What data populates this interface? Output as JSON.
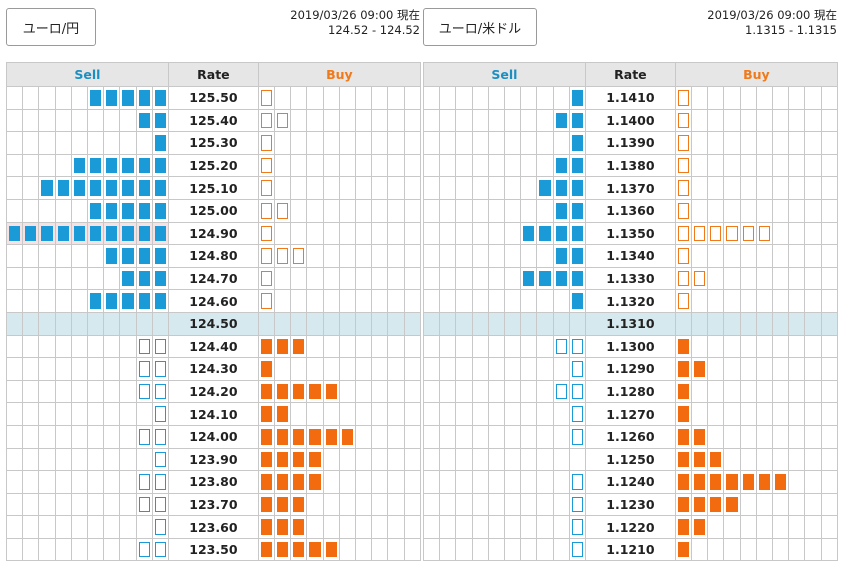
{
  "panels": [
    {
      "button_label": "ユーロ/円",
      "timestamp": "2019/03/26 09:00 現在",
      "quote": "124.52 - 124.52",
      "headers": {
        "sell": "Sell",
        "rate": "Rate",
        "buy": "Buy"
      },
      "highlight_row": 6,
      "rows": [
        {
          "rate": "125.50",
          "sell": 5,
          "sell_type": "filled",
          "buy": 1,
          "buy_type": "outline"
        },
        {
          "rate": "125.40",
          "sell": 2,
          "sell_type": "filled",
          "buy": 2,
          "buy_type": "outline"
        },
        {
          "rate": "125.30",
          "sell": 1,
          "sell_type": "filled",
          "buy": 1,
          "buy_type": "outline"
        },
        {
          "rate": "125.20",
          "sell": 6,
          "sell_type": "filled",
          "buy": 1,
          "buy_type": "outline"
        },
        {
          "rate": "125.10",
          "sell": 8,
          "sell_type": "filled",
          "buy": 1,
          "buy_type": "outline"
        },
        {
          "rate": "125.00",
          "sell": 5,
          "sell_type": "filled",
          "buy": 2,
          "buy_type": "outline"
        },
        {
          "rate": "124.90",
          "sell": 10,
          "sell_type": "filled",
          "buy": 1,
          "buy_type": "outline"
        },
        {
          "rate": "124.80",
          "sell": 4,
          "sell_type": "filled",
          "buy": 3,
          "buy_type": "outline"
        },
        {
          "rate": "124.70",
          "sell": 3,
          "sell_type": "filled",
          "buy": 1,
          "buy_type": "outline"
        },
        {
          "rate": "124.60",
          "sell": 5,
          "sell_type": "filled",
          "buy": 1,
          "buy_type": "outline"
        },
        {
          "rate": "124.50",
          "sell": 0,
          "sell_type": "none",
          "buy": 0,
          "buy_type": "none",
          "mid": true
        },
        {
          "rate": "124.40",
          "sell": 2,
          "sell_type": "outline",
          "buy": 3,
          "buy_type": "filled"
        },
        {
          "rate": "124.30",
          "sell": 2,
          "sell_type": "outline",
          "buy": 1,
          "buy_type": "filled"
        },
        {
          "rate": "124.20",
          "sell": 2,
          "sell_type": "outline",
          "buy": 5,
          "buy_type": "filled"
        },
        {
          "rate": "124.10",
          "sell": 1,
          "sell_type": "outline",
          "buy": 2,
          "buy_type": "filled"
        },
        {
          "rate": "124.00",
          "sell": 2,
          "sell_type": "outline",
          "buy": 6,
          "buy_type": "filled"
        },
        {
          "rate": "123.90",
          "sell": 1,
          "sell_type": "outline",
          "buy": 4,
          "buy_type": "filled"
        },
        {
          "rate": "123.80",
          "sell": 2,
          "sell_type": "outline",
          "buy": 4,
          "buy_type": "filled"
        },
        {
          "rate": "123.70",
          "sell": 2,
          "sell_type": "outline",
          "buy": 3,
          "buy_type": "filled"
        },
        {
          "rate": "123.60",
          "sell": 1,
          "sell_type": "outline",
          "buy": 3,
          "buy_type": "filled"
        },
        {
          "rate": "123.50",
          "sell": 2,
          "sell_type": "outline",
          "buy": 5,
          "buy_type": "filled"
        }
      ]
    },
    {
      "button_label": "ユーロ/米ドル",
      "timestamp": "2019/03/26 09:00 現在",
      "quote": "1.1315 - 1.1315",
      "headers": {
        "sell": "Sell",
        "rate": "Rate",
        "buy": "Buy"
      },
      "highlight_row": -1,
      "rows": [
        {
          "rate": "1.1410",
          "sell": 1,
          "sell_type": "filled",
          "buy": 1,
          "buy_type": "outline"
        },
        {
          "rate": "1.1400",
          "sell": 2,
          "sell_type": "filled",
          "buy": 1,
          "buy_type": "outline"
        },
        {
          "rate": "1.1390",
          "sell": 1,
          "sell_type": "filled",
          "buy": 1,
          "buy_type": "outline"
        },
        {
          "rate": "1.1380",
          "sell": 2,
          "sell_type": "filled",
          "buy": 1,
          "buy_type": "outline"
        },
        {
          "rate": "1.1370",
          "sell": 3,
          "sell_type": "filled",
          "buy": 1,
          "buy_type": "outline"
        },
        {
          "rate": "1.1360",
          "sell": 2,
          "sell_type": "filled",
          "buy": 1,
          "buy_type": "outline"
        },
        {
          "rate": "1.1350",
          "sell": 4,
          "sell_type": "filled",
          "buy": 6,
          "buy_type": "outline"
        },
        {
          "rate": "1.1340",
          "sell": 2,
          "sell_type": "filled",
          "buy": 1,
          "buy_type": "outline"
        },
        {
          "rate": "1.1330",
          "sell": 4,
          "sell_type": "filled",
          "buy": 2,
          "buy_type": "outline"
        },
        {
          "rate": "1.1320",
          "sell": 1,
          "sell_type": "filled",
          "buy": 1,
          "buy_type": "outline"
        },
        {
          "rate": "1.1310",
          "sell": 0,
          "sell_type": "none",
          "buy": 0,
          "buy_type": "none",
          "mid": true
        },
        {
          "rate": "1.1300",
          "sell": 2,
          "sell_type": "outline",
          "buy": 1,
          "buy_type": "filled"
        },
        {
          "rate": "1.1290",
          "sell": 1,
          "sell_type": "outline",
          "buy": 2,
          "buy_type": "filled"
        },
        {
          "rate": "1.1280",
          "sell": 2,
          "sell_type": "outline",
          "buy": 1,
          "buy_type": "filled"
        },
        {
          "rate": "1.1270",
          "sell": 1,
          "sell_type": "outline",
          "buy": 1,
          "buy_type": "filled"
        },
        {
          "rate": "1.1260",
          "sell": 1,
          "sell_type": "outline",
          "buy": 2,
          "buy_type": "filled"
        },
        {
          "rate": "1.1250",
          "sell": 0,
          "sell_type": "none",
          "buy": 3,
          "buy_type": "filled"
        },
        {
          "rate": "1.1240",
          "sell": 1,
          "sell_type": "outline",
          "buy": 7,
          "buy_type": "filled"
        },
        {
          "rate": "1.1230",
          "sell": 1,
          "sell_type": "outline",
          "buy": 4,
          "buy_type": "filled"
        },
        {
          "rate": "1.1220",
          "sell": 1,
          "sell_type": "outline",
          "buy": 2,
          "buy_type": "filled"
        },
        {
          "rate": "1.1210",
          "sell": 1,
          "sell_type": "outline",
          "buy": 1,
          "buy_type": "filled"
        }
      ]
    }
  ],
  "colors": {
    "sell": "#1a9bd7",
    "buy": "#f26b0f",
    "mid_row": "#d6e9ee",
    "header": "#e6e6e6"
  }
}
